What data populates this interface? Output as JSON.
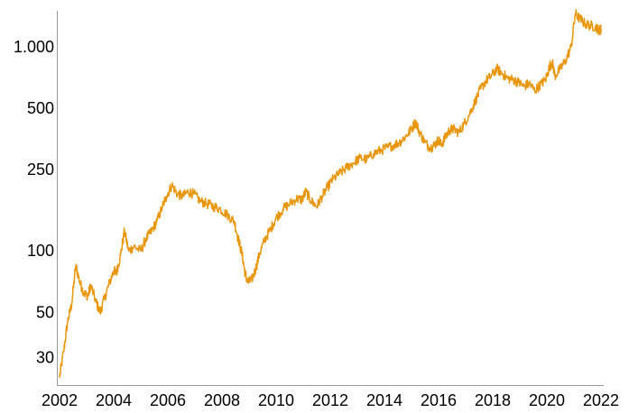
{
  "chart_data": {
    "type": "line",
    "title": "",
    "xlabel": "",
    "ylabel": "",
    "y_scale": "log",
    "ylim": [
      22,
      1500
    ],
    "xlim": [
      2001.9,
      2022.1
    ],
    "grid": false,
    "legend": "none",
    "x_ticks": [
      {
        "value": 2002,
        "label": "2002"
      },
      {
        "value": 2004,
        "label": "2004"
      },
      {
        "value": 2006,
        "label": "2006"
      },
      {
        "value": 2008,
        "label": "2008"
      },
      {
        "value": 2010,
        "label": "2010"
      },
      {
        "value": 2012,
        "label": "2012"
      },
      {
        "value": 2014,
        "label": "2014"
      },
      {
        "value": 2016,
        "label": "2016"
      },
      {
        "value": 2018,
        "label": "2018"
      },
      {
        "value": 2020,
        "label": "2020"
      },
      {
        "value": 2022,
        "label": "2022"
      }
    ],
    "y_ticks": [
      {
        "value": 30,
        "label": "30"
      },
      {
        "value": 50,
        "label": "50"
      },
      {
        "value": 100,
        "label": "100"
      },
      {
        "value": 250,
        "label": "250"
      },
      {
        "value": 500,
        "label": "500"
      },
      {
        "value": 1000,
        "label": "1.000"
      }
    ],
    "series": [
      {
        "color": "#E8960C",
        "x": [
          2002.0,
          2002.15,
          2002.3,
          2002.45,
          2002.6,
          2002.75,
          2002.9,
          2003.05,
          2003.15,
          2003.35,
          2003.5,
          2003.65,
          2003.85,
          2004.0,
          2004.1,
          2004.25,
          2004.4,
          2004.55,
          2004.75,
          2005.0,
          2005.2,
          2005.4,
          2005.6,
          2005.8,
          2005.95,
          2006.15,
          2006.35,
          2006.55,
          2006.75,
          2006.95,
          2007.2,
          2007.45,
          2007.7,
          2007.95,
          2008.2,
          2008.45,
          2008.6,
          2008.75,
          2008.85,
          2008.95,
          2009.1,
          2009.25,
          2009.4,
          2009.6,
          2009.8,
          2010.0,
          2010.25,
          2010.5,
          2010.75,
          2010.95,
          2011.1,
          2011.3,
          2011.5,
          2011.7,
          2011.9,
          2012.1,
          2012.35,
          2012.6,
          2012.85,
          2013.1,
          2013.35,
          2013.6,
          2013.85,
          2014.1,
          2014.35,
          2014.55,
          2014.8,
          2015.0,
          2015.15,
          2015.3,
          2015.5,
          2015.7,
          2015.85,
          2016.0,
          2016.1,
          2016.25,
          2016.4,
          2016.55,
          2016.75,
          2016.95,
          2017.15,
          2017.35,
          2017.55,
          2017.75,
          2017.95,
          2018.15,
          2018.35,
          2018.55,
          2018.75,
          2018.95,
          2019.15,
          2019.35,
          2019.55,
          2019.75,
          2019.95,
          2020.1,
          2020.2,
          2020.3,
          2020.5,
          2020.7,
          2020.9,
          2021.05,
          2021.2,
          2021.4,
          2021.6,
          2021.8,
          2021.95,
          2022.0
        ],
        "y": [
          24,
          32,
          45,
          55,
          85,
          70,
          62,
          60,
          68,
          56,
          50,
          58,
          70,
          80,
          78,
          95,
          125,
          100,
          105,
          100,
          115,
          125,
          140,
          165,
          185,
          210,
          190,
          185,
          195,
          190,
          175,
          170,
          165,
          160,
          150,
          140,
          115,
          95,
          78,
          70,
          72,
          82,
          98,
          115,
          128,
          145,
          160,
          170,
          180,
          178,
          195,
          175,
          165,
          185,
          205,
          225,
          240,
          255,
          270,
          285,
          280,
          300,
          310,
          320,
          330,
          340,
          365,
          395,
          430,
          380,
          340,
          320,
          330,
          350,
          330,
          360,
          390,
          395,
          380,
          420,
          470,
          540,
          620,
          680,
          720,
          780,
          740,
          700,
          690,
          670,
          640,
          660,
          610,
          650,
          690,
          800,
          840,
          720,
          780,
          860,
          1000,
          1450,
          1380,
          1300,
          1270,
          1250,
          1200,
          1220
        ]
      }
    ]
  }
}
